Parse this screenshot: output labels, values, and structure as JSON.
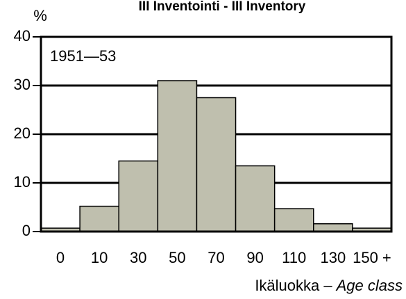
{
  "chart_data": {
    "type": "bar",
    "title": "III Inventointi - III Inventory",
    "ylabel": "%",
    "annotation": "1951—53",
    "xlabel": [
      "Ikäluokka –",
      "Age class"
    ],
    "categories": [
      "0",
      "10",
      "30",
      "50",
      "70",
      "90",
      "110",
      "130",
      "150 +"
    ],
    "values": [
      0.7,
      5.2,
      14.5,
      31,
      27.5,
      13.5,
      4.7,
      1.6,
      0.7
    ],
    "color": "#bfbfae",
    "ylim": [
      0,
      40
    ],
    "yticks": [
      0,
      10,
      20,
      30,
      40
    ],
    "grid": true
  }
}
